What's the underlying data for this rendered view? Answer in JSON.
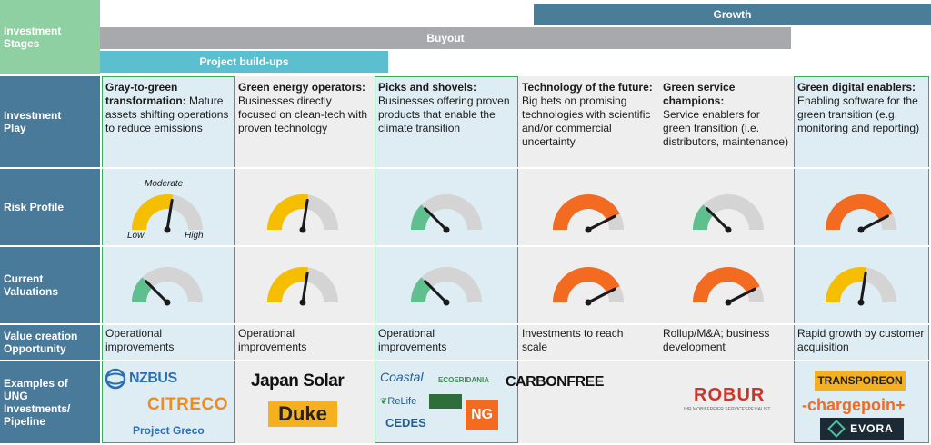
{
  "labels": {
    "stages": "Investment Stages",
    "play": "Investment Play",
    "risk": "Risk Profile",
    "valuations": "Current Valuations",
    "value_creation": "Value creation Opportunity",
    "examples": "Examples of UNG Investments/ Pipeline"
  },
  "stages": {
    "growth": "Growth",
    "buyout": "Buyout",
    "buildups": "Project build-ups"
  },
  "gauge_legend": {
    "moderate": "Moderate",
    "low": "Low",
    "high": "High"
  },
  "colors": {
    "low": "#5fbf8f",
    "moderate": "#f5be00",
    "high": "#f26b21",
    "track": "#d4d4d4"
  },
  "columns": [
    {
      "title": "Gray-to-green transformation:",
      "desc": "Mature assets shifting operations to reduce emissions",
      "risk": "moderate",
      "valuation": "low",
      "value_creation": "Operational improvements",
      "logos": [
        "NZBUS",
        "CITRECO",
        "Project Greco"
      ]
    },
    {
      "title": "Green energy operators:",
      "desc": "Businesses directly focused on clean-tech with proven technology",
      "risk": "moderate",
      "valuation": "moderate",
      "value_creation": "Operational improvements",
      "logos": [
        "Japan Solar",
        "Duke"
      ]
    },
    {
      "title": "Picks and shovels:",
      "desc": "Businesses offering proven products that enable the climate transition",
      "risk": "low",
      "valuation": "low",
      "value_creation": "Operational improvements",
      "logos": [
        "Coastal",
        "ECOERIDANIA",
        "ReLife",
        "CEDES",
        "NG"
      ]
    },
    {
      "title": "Technology of the future:",
      "desc": "Big bets on promising technologies with scientific and/or commercial uncertainty",
      "risk": "high",
      "valuation": "high",
      "value_creation": "Investments to reach scale",
      "logos": [
        "CARBONFREE"
      ]
    },
    {
      "title": "Green service champions:",
      "desc": "Service enablers for green transition (i.e. distributors, maintenance)",
      "risk": "low",
      "valuation": "high",
      "value_creation": "Rollup/M&A; business development",
      "logos": [
        "ROBUR",
        "IHR MOBILFREIER SERVICESPEZIALIST"
      ]
    },
    {
      "title": "Green digital enablers:",
      "desc": "Enabling software for the green transition (e.g. monitoring and reporting)",
      "risk": "high",
      "valuation": "moderate",
      "value_creation": "Rapid growth by customer acquisition",
      "logos": [
        "TRANSPOREON",
        "-chargepoin+",
        "EVORA"
      ]
    }
  ]
}
